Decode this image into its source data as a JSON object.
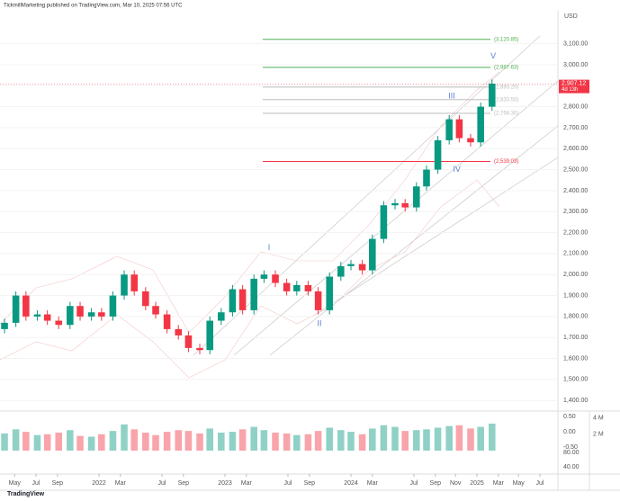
{
  "header": "TickmillMarketing published on TradingView.com, Mar 10, 2025 07:56 UTC",
  "footer": "TradingView",
  "chart_data": {
    "type": "candlestick",
    "currency": "USD",
    "up_color": "#089981",
    "down_color": "#f23645",
    "xlim": [
      2021.214,
      2025.643
    ],
    "xticks": [
      {
        "value": 2021.33,
        "label": "May"
      },
      {
        "value": 2021.5,
        "label": "Jul"
      },
      {
        "value": 2021.67,
        "label": "Sep"
      },
      {
        "value": 2022.0,
        "label": "2022"
      },
      {
        "value": 2022.17,
        "label": "Mar"
      },
      {
        "value": 2022.5,
        "label": "Jul"
      },
      {
        "value": 2022.67,
        "label": "Sep"
      },
      {
        "value": 2023.0,
        "label": "2023"
      },
      {
        "value": 2023.17,
        "label": "Mar"
      },
      {
        "value": 2023.5,
        "label": "Jul"
      },
      {
        "value": 2023.67,
        "label": "Sep"
      },
      {
        "value": 2024.0,
        "label": "2024"
      },
      {
        "value": 2024.17,
        "label": "Mar"
      },
      {
        "value": 2024.5,
        "label": "Jul"
      },
      {
        "value": 2024.67,
        "label": "Sep"
      },
      {
        "value": 2024.83,
        "label": "Nov"
      },
      {
        "value": 2025.0,
        "label": "2025"
      },
      {
        "value": 2025.17,
        "label": "Mar"
      },
      {
        "value": 2025.33,
        "label": "May"
      },
      {
        "value": 2025.5,
        "label": "Jul"
      }
    ],
    "ylim": [
      1358,
      3257
    ],
    "yticks": [
      {
        "value": 1400,
        "label": "1,400.00"
      },
      {
        "value": 1500,
        "label": "1,500.00"
      },
      {
        "value": 1600,
        "label": "1,600.00"
      },
      {
        "value": 1700,
        "label": "1,700.00"
      },
      {
        "value": 1800,
        "label": "1,800.00"
      },
      {
        "value": 1900,
        "label": "1,900.00"
      },
      {
        "value": 2000,
        "label": "2,000.00"
      },
      {
        "value": 2100,
        "label": "2,100.00"
      },
      {
        "value": 2200,
        "label": "2,200.00"
      },
      {
        "value": 2300,
        "label": "2,300.00"
      },
      {
        "value": 2400,
        "label": "2,400.00"
      },
      {
        "value": 2500,
        "label": "2,500.00"
      },
      {
        "value": 2600,
        "label": "2,600.00"
      },
      {
        "value": 2700,
        "label": "2,700.00"
      },
      {
        "value": 2800,
        "label": "2,800.00"
      },
      {
        "value": 2900,
        "label": "2,900.00"
      },
      {
        "value": 3000,
        "label": "3,000.00"
      },
      {
        "value": 3100,
        "label": "3,100.00"
      }
    ],
    "x": [
      2021.25,
      2021.34,
      2021.42,
      2021.51,
      2021.59,
      2021.68,
      2021.77,
      2021.85,
      2021.94,
      2022.02,
      2022.11,
      2022.2,
      2022.28,
      2022.37,
      2022.45,
      2022.54,
      2022.63,
      2022.71,
      2022.8,
      2022.88,
      2022.97,
      2023.06,
      2023.14,
      2023.23,
      2023.31,
      2023.4,
      2023.49,
      2023.57,
      2023.66,
      2023.74,
      2023.83,
      2023.92,
      2024.0,
      2024.09,
      2024.17,
      2024.26,
      2024.35,
      2024.43,
      2024.52,
      2024.6,
      2024.69,
      2024.78,
      2024.86,
      2024.95,
      2025.03,
      2025.12
    ],
    "open": [
      1740,
      1770,
      1900,
      1800,
      1810,
      1780,
      1760,
      1850,
      1800,
      1820,
      1800,
      1900,
      2000,
      1920,
      1850,
      1810,
      1740,
      1710,
      1650,
      1640,
      1780,
      1820,
      1930,
      1830,
      1980,
      2000,
      1960,
      1920,
      1950,
      1920,
      1830,
      1990,
      2040,
      2050,
      2020,
      2170,
      2330,
      2340,
      2320,
      2420,
      2500,
      2640,
      2740,
      2650,
      2630,
      2800
    ],
    "high": [
      1790,
      1920,
      1920,
      1830,
      1830,
      1800,
      1870,
      1870,
      1840,
      1840,
      1920,
      2020,
      2020,
      1940,
      1870,
      1830,
      1760,
      1730,
      1670,
      1800,
      1840,
      1950,
      1950,
      2000,
      2020,
      2020,
      1980,
      1970,
      1970,
      1940,
      2010,
      2060,
      2070,
      2070,
      2190,
      2350,
      2360,
      2360,
      2440,
      2520,
      2660,
      2760,
      2760,
      2670,
      2820,
      2930
    ],
    "low": [
      1720,
      1750,
      1780,
      1780,
      1760,
      1740,
      1740,
      1780,
      1780,
      1780,
      1780,
      1880,
      1900,
      1830,
      1790,
      1720,
      1690,
      1630,
      1620,
      1620,
      1760,
      1800,
      1810,
      1810,
      1960,
      1940,
      1900,
      1900,
      1900,
      1810,
      1810,
      1970,
      2020,
      2000,
      2000,
      2150,
      2310,
      2300,
      2300,
      2400,
      2480,
      2620,
      2630,
      2610,
      2610,
      2780
    ],
    "close": [
      1770,
      1900,
      1800,
      1810,
      1780,
      1760,
      1850,
      1800,
      1820,
      1800,
      1900,
      2000,
      1920,
      1850,
      1810,
      1740,
      1710,
      1650,
      1640,
      1780,
      1820,
      1930,
      1830,
      1980,
      2000,
      1960,
      1920,
      1950,
      1920,
      1830,
      1990,
      2040,
      2050,
      2020,
      2170,
      2330,
      2340,
      2320,
      2420,
      2500,
      2640,
      2740,
      2650,
      2630,
      2800,
      2910
    ],
    "volume": [
      2100000,
      2600000,
      2300000,
      1900000,
      2000000,
      2200000,
      2500000,
      1800000,
      1700000,
      2000000,
      2400000,
      3200000,
      2600000,
      2200000,
      1900000,
      2300000,
      2500000,
      2400000,
      2100000,
      2700000,
      2200000,
      2300000,
      2600000,
      2900000,
      2500000,
      2200000,
      2100000,
      1900000,
      2000000,
      2400000,
      2800000,
      2500000,
      2300000,
      2000000,
      2700000,
      3100000,
      2900000,
      2400000,
      2500000,
      2600000,
      2800000,
      3000000,
      3100000,
      2700000,
      2900000,
      3300000
    ],
    "volume_ylim": [
      0,
      4500000
    ],
    "volume_ticks": [
      {
        "value": 4000000,
        "label": "4 M"
      },
      {
        "value": 2000000,
        "label": "2 M"
      }
    ],
    "sub_panel_labels": [
      "0.50",
      "0.00",
      "-0.50",
      "80.00",
      "40.00"
    ],
    "levels": [
      {
        "value": 3120.85,
        "label": "(3,120.85)",
        "color": "#4caf50"
      },
      {
        "value": 2987.63,
        "label": "(2,987.63)",
        "color": "#4caf50"
      },
      {
        "value": 2893.2,
        "label": "(2,893.20)",
        "color": "#bdbdbd"
      },
      {
        "value": 2833.5,
        "label": "(2,833.50)",
        "color": "#bdbdbd"
      },
      {
        "value": 2768.3,
        "label": "(2,768.30)",
        "color": "#bdbdbd"
      },
      {
        "value": 2539.03,
        "label": "(2,539.03)",
        "color": "#f23645"
      }
    ],
    "waves": [
      {
        "label": "I",
        "at": [
          2023.35,
          2126
        ]
      },
      {
        "label": "II",
        "at": [
          2023.75,
          1765
        ]
      },
      {
        "label": "III",
        "at": [
          2024.8,
          2850
        ]
      },
      {
        "label": "IV",
        "at": [
          2024.84,
          2500
        ]
      },
      {
        "label": "V",
        "at": [
          2025.13,
          3040
        ]
      }
    ],
    "last_price": {
      "value": 2907.12,
      "label": "2,907.12",
      "countdown": "4d 13h"
    }
  }
}
